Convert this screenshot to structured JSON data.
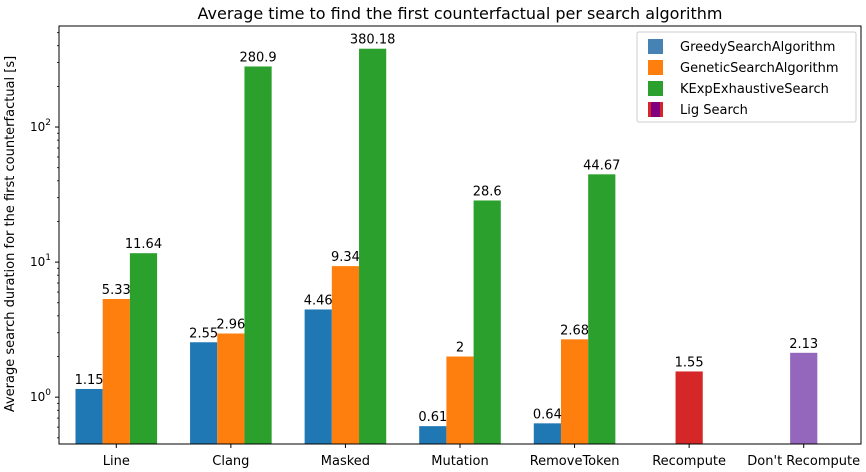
{
  "chart_data": {
    "type": "bar",
    "title": "Average time to find the first counterfactual per search algorithm",
    "ylabel": "Average search duration for the first counterfactual [s]",
    "xlabel": "",
    "yscale": "log",
    "ylim": [
      0.45,
      560
    ],
    "y_ticks": [
      {
        "value": 1,
        "base": "10",
        "exp": "0"
      },
      {
        "value": 10,
        "base": "10",
        "exp": "1"
      },
      {
        "value": 100,
        "base": "10",
        "exp": "2"
      }
    ],
    "categories": [
      "Line",
      "Clang",
      "Masked",
      "Mutation",
      "RemoveToken",
      "Recompute",
      "Don't Recompute"
    ],
    "series": [
      {
        "color": "#1f77b4",
        "values": [
          1.15,
          2.55,
          4.46,
          0.61,
          0.64,
          null,
          null
        ],
        "labels": [
          "1.15",
          "2.55",
          "4.46",
          "0.61",
          "0.64",
          "",
          ""
        ]
      },
      {
        "color": "#ff7f0e",
        "values": [
          5.33,
          2.96,
          9.34,
          2,
          2.68,
          null,
          null
        ],
        "labels": [
          "5.33",
          "2.96",
          "9.34",
          "2",
          "2.68",
          "",
          ""
        ]
      },
      {
        "color": "#2ca02c",
        "values": [
          11.64,
          280.9,
          380.18,
          28.6,
          44.67,
          null,
          null
        ],
        "labels": [
          "11.64",
          "280.9",
          "380.18",
          "28.6",
          "44.67",
          "",
          ""
        ]
      }
    ],
    "single_bars": [
      {
        "category_index": 5,
        "value": 1.55,
        "label": "1.55",
        "color": "#d62728"
      },
      {
        "category_index": 6,
        "value": 2.13,
        "label": "2.13",
        "color": "#9467bd"
      }
    ],
    "legend": {
      "placement": "top-right",
      "entries": [
        {
          "label": "GreedySearchAlgorithm",
          "color": "#4682b4"
        },
        {
          "label": "GeneticSearchAlgorithm",
          "color": "#ff7f0e"
        },
        {
          "label": "KExpExhaustiveSearch",
          "color": "#2ca02c"
        },
        {
          "label": "Lig Search",
          "color": "#d62728",
          "color2": "#800080"
        }
      ]
    },
    "grid": false
  }
}
